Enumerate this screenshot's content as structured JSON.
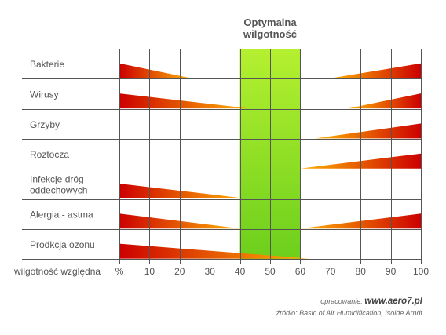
{
  "chart_data": {
    "type": "bar",
    "title": "Optymalna\nwilgotność",
    "xlabel": "wilgotność względna",
    "x_unit_label": "%",
    "xlim": [
      0,
      100
    ],
    "xticks": [
      10,
      20,
      30,
      40,
      50,
      60,
      70,
      80,
      90,
      100
    ],
    "optimal_range": [
      40,
      60
    ],
    "categories": [
      "Bakterie",
      "Wirusy",
      "Grzyby",
      "Roztocza",
      "Infekcje dróg\noddechowych",
      "Alergia - astma",
      "Prodkcja ozonu"
    ],
    "ranges": [
      {
        "left": [
          0,
          24
        ],
        "right": [
          70,
          100
        ]
      },
      {
        "left": [
          0,
          43
        ],
        "right": [
          76,
          100
        ]
      },
      {
        "left": null,
        "right": [
          65,
          100
        ]
      },
      {
        "left": null,
        "right": [
          60,
          100
        ]
      },
      {
        "left": [
          0,
          42
        ],
        "right": null
      },
      {
        "left": [
          0,
          40
        ],
        "right": [
          60,
          100
        ]
      },
      {
        "left": [
          0,
          63
        ],
        "right": null
      }
    ],
    "grid": true,
    "colors": {
      "strong": "#cc0000",
      "weak": "#ffb300",
      "optimal_light": "#b5f030",
      "optimal_dark": "#6ccf1c",
      "grid": "#555555"
    }
  },
  "credits": {
    "prepared_label": "opracowanie:",
    "prepared_site": "www.aero7.pl",
    "source": "źródło: Basic of Air Humidification, Isolde Arndt"
  }
}
